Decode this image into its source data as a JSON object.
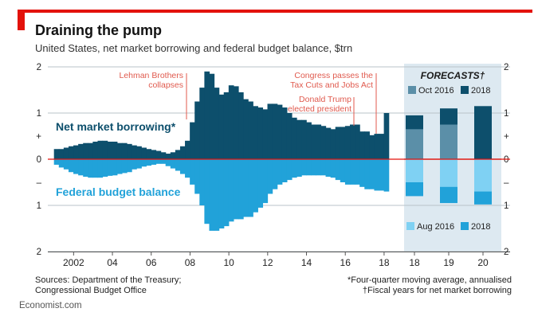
{
  "header": {
    "title": "Draining the pump",
    "subtitle": "United States, net market borrowing and federal budget balance, $trn"
  },
  "footer": {
    "source_line1": "Sources: Department of the Treasury;",
    "source_line2": "Congressional Budget Office",
    "note1": "*Four-quarter moving average, annualised",
    "note2": "†Fiscal years for net market borrowing",
    "brand": "Economist.com"
  },
  "colors": {
    "borrowing": "#0d4f6c",
    "balance": "#21a2d9",
    "forecast_panel": "#dde9f1",
    "oct2016": "#5b8fa8",
    "aug2016": "#7fd1f3",
    "annotation": "#e05a4e",
    "zero_line": "#e3120b"
  },
  "chart_data": [
    {
      "type": "bar",
      "title": "Draining the pump",
      "x_ticks": [
        "2002",
        "04",
        "06",
        "08",
        "10",
        "12",
        "14",
        "16",
        "18"
      ],
      "x_tick_years": [
        2002,
        2004,
        2006,
        2008,
        2010,
        2012,
        2014,
        2016,
        2018
      ],
      "y_ticks_left": [
        "2",
        "1",
        "+",
        "0",
        "–",
        "1",
        "2"
      ],
      "y_ticks_right": [
        "2",
        "1",
        "+",
        "0",
        "–",
        "1",
        "2"
      ],
      "ylim": [
        -2,
        2
      ],
      "grid": true,
      "series": [
        {
          "name": "Net market borrowing*",
          "x": [
            2001.0,
            2001.25,
            2001.5,
            2001.75,
            2002.0,
            2002.25,
            2002.5,
            2002.75,
            2003.0,
            2003.25,
            2003.5,
            2003.75,
            2004.0,
            2004.25,
            2004.5,
            2004.75,
            2005.0,
            2005.25,
            2005.5,
            2005.75,
            2006.0,
            2006.25,
            2006.5,
            2006.75,
            2007.0,
            2007.25,
            2007.5,
            2007.75,
            2008.0,
            2008.25,
            2008.5,
            2008.75,
            2009.0,
            2009.25,
            2009.5,
            2009.75,
            2010.0,
            2010.25,
            2010.5,
            2010.75,
            2011.0,
            2011.25,
            2011.5,
            2011.75,
            2012.0,
            2012.25,
            2012.5,
            2012.75,
            2013.0,
            2013.25,
            2013.5,
            2013.75,
            2014.0,
            2014.25,
            2014.5,
            2014.75,
            2015.0,
            2015.25,
            2015.5,
            2015.75,
            2016.0,
            2016.25,
            2016.5,
            2016.75,
            2017.0,
            2017.25,
            2017.5,
            2017.75,
            2018.0
          ],
          "values": [
            0.22,
            0.22,
            0.25,
            0.28,
            0.3,
            0.33,
            0.35,
            0.35,
            0.38,
            0.4,
            0.4,
            0.38,
            0.38,
            0.35,
            0.35,
            0.33,
            0.3,
            0.28,
            0.25,
            0.22,
            0.2,
            0.18,
            0.15,
            0.12,
            0.15,
            0.2,
            0.28,
            0.4,
            0.8,
            1.25,
            1.55,
            1.9,
            1.85,
            1.55,
            1.4,
            1.45,
            1.6,
            1.58,
            1.45,
            1.3,
            1.25,
            1.15,
            1.12,
            1.08,
            1.2,
            1.2,
            1.18,
            1.12,
            1.0,
            0.9,
            0.85,
            0.85,
            0.8,
            0.75,
            0.75,
            0.72,
            0.68,
            0.65,
            0.7,
            0.7,
            0.72,
            0.75,
            0.75,
            0.6,
            0.6,
            0.52,
            0.55,
            0.55,
            1.0
          ]
        },
        {
          "name": "Federal budget balance",
          "x": [
            2001.0,
            2001.25,
            2001.5,
            2001.75,
            2002.0,
            2002.25,
            2002.5,
            2002.75,
            2003.0,
            2003.25,
            2003.5,
            2003.75,
            2004.0,
            2004.25,
            2004.5,
            2004.75,
            2005.0,
            2005.25,
            2005.5,
            2005.75,
            2006.0,
            2006.25,
            2006.5,
            2006.75,
            2007.0,
            2007.25,
            2007.5,
            2007.75,
            2008.0,
            2008.25,
            2008.5,
            2008.75,
            2009.0,
            2009.25,
            2009.5,
            2009.75,
            2010.0,
            2010.25,
            2010.5,
            2010.75,
            2011.0,
            2011.25,
            2011.5,
            2011.75,
            2012.0,
            2012.25,
            2012.5,
            2012.75,
            2013.0,
            2013.25,
            2013.5,
            2013.75,
            2014.0,
            2014.25,
            2014.5,
            2014.75,
            2015.0,
            2015.25,
            2015.5,
            2015.75,
            2016.0,
            2016.25,
            2016.5,
            2016.75,
            2017.0,
            2017.25,
            2017.5,
            2017.75,
            2018.0
          ],
          "values": [
            -0.12,
            -0.18,
            -0.22,
            -0.28,
            -0.32,
            -0.35,
            -0.38,
            -0.4,
            -0.4,
            -0.4,
            -0.38,
            -0.36,
            -0.35,
            -0.32,
            -0.3,
            -0.28,
            -0.22,
            -0.2,
            -0.16,
            -0.14,
            -0.12,
            -0.1,
            -0.1,
            -0.15,
            -0.2,
            -0.25,
            -0.32,
            -0.4,
            -0.55,
            -0.75,
            -1.0,
            -1.4,
            -1.55,
            -1.55,
            -1.5,
            -1.45,
            -1.35,
            -1.3,
            -1.3,
            -1.25,
            -1.25,
            -1.15,
            -1.05,
            -0.95,
            -0.75,
            -0.65,
            -0.55,
            -0.5,
            -0.45,
            -0.4,
            -0.38,
            -0.35,
            -0.35,
            -0.35,
            -0.35,
            -0.35,
            -0.38,
            -0.4,
            -0.45,
            -0.5,
            -0.55,
            -0.55,
            -0.55,
            -0.6,
            -0.65,
            -0.65,
            -0.68,
            -0.68,
            -0.7
          ]
        }
      ],
      "labels": {
        "borrowing": "Net market borrowing*",
        "balance": "Federal budget balance"
      },
      "annotations": [
        {
          "text_lines": [
            "Lehman Brothers",
            "collapses"
          ],
          "x": 2008.5,
          "y": 1.9
        },
        {
          "text_lines": [
            "Congress passes the",
            "Tax Cuts and Jobs Act"
          ],
          "x": 2017.9,
          "y": 1.9
        },
        {
          "text_lines": [
            "Donald Trump",
            "elected president"
          ],
          "x": 2016.8,
          "y": 1.4
        }
      ]
    },
    {
      "type": "bar",
      "title": "FORECASTS†",
      "categories": [
        "18",
        "19",
        "20"
      ],
      "ylim": [
        -2,
        2
      ],
      "series": [
        {
          "name": "Oct 2016",
          "values": [
            0.65,
            0.75,
            0.0
          ]
        },
        {
          "name": "2018",
          "values": [
            0.95,
            1.1,
            1.15
          ]
        },
        {
          "name": "Aug 2016",
          "values": [
            -0.5,
            -0.6,
            -0.7
          ]
        },
        {
          "name": "2018",
          "values": [
            -0.8,
            -0.95,
            -0.98
          ]
        }
      ],
      "legend": {
        "top": [
          "Oct 2016",
          "2018"
        ],
        "bottom": [
          "Aug 2016",
          "2018"
        ]
      }
    }
  ]
}
